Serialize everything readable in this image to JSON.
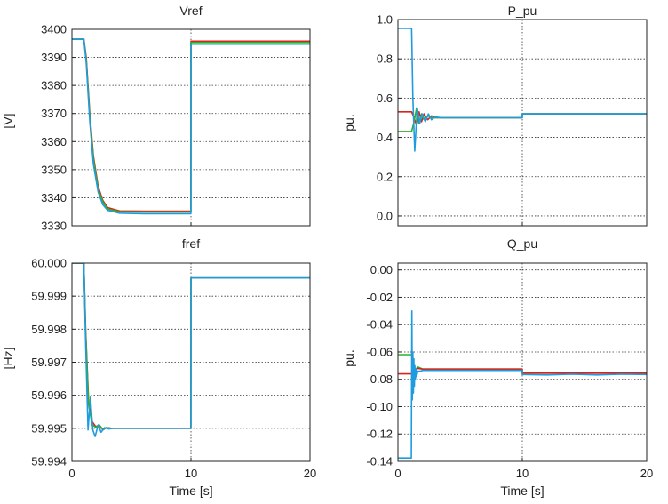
{
  "colors": {
    "red": "#d9241b",
    "green": "#2cb02c",
    "blue": "#1f9be0",
    "grid": "#333333"
  },
  "chart_data": [
    {
      "type": "line",
      "title": "Vref",
      "xlabel": "",
      "ylabel": "[V]",
      "xlim": [
        0,
        20
      ],
      "ylim": [
        3330,
        3400
      ],
      "xticks": [
        0,
        10,
        20
      ],
      "xtick_labels": [
        "",
        "",
        ""
      ],
      "yticks": [
        3330,
        3340,
        3350,
        3360,
        3370,
        3380,
        3390,
        3400
      ],
      "ytick_labels": [
        "3330",
        "3340",
        "3350",
        "3360",
        "3370",
        "3380",
        "3390",
        "3400"
      ],
      "series": [
        {
          "name": "red",
          "color": "#d9241b",
          "x": [
            0,
            1.0,
            1.2,
            1.5,
            1.8,
            2.2,
            2.6,
            3.0,
            4.0,
            6.0,
            9.99,
            10.0,
            20.0
          ],
          "y": [
            3396.5,
            3396.5,
            3390,
            3370,
            3355,
            3344,
            3339,
            3336.5,
            3335.3,
            3335.2,
            3335.2,
            3395.8,
            3395.8
          ]
        },
        {
          "name": "green",
          "color": "#2cb02c",
          "x": [
            0,
            1.0,
            1.2,
            1.5,
            1.8,
            2.2,
            2.6,
            3.0,
            4.0,
            6.0,
            9.99,
            10.0,
            20.0
          ],
          "y": [
            3396.5,
            3396.5,
            3389,
            3369,
            3354,
            3343,
            3338.5,
            3336,
            3335.0,
            3334.9,
            3334.9,
            3395.3,
            3395.3
          ]
        },
        {
          "name": "blue",
          "color": "#1f9be0",
          "x": [
            0,
            1.0,
            1.2,
            1.5,
            1.8,
            2.2,
            2.6,
            3.0,
            4.0,
            6.0,
            9.99,
            10.0,
            20.0
          ],
          "y": [
            3396.5,
            3396.5,
            3388,
            3367,
            3352,
            3342,
            3337.5,
            3335.5,
            3334.5,
            3334.3,
            3334.3,
            3394.7,
            3394.7
          ]
        }
      ]
    },
    {
      "type": "line",
      "title": "P_pu",
      "xlabel": "",
      "ylabel": "pu.",
      "xlim": [
        0,
        20
      ],
      "ylim": [
        -0.05,
        1.0
      ],
      "xticks": [
        0,
        10,
        20
      ],
      "xtick_labels": [
        "",
        "",
        ""
      ],
      "yticks": [
        0.0,
        0.2,
        0.4,
        0.6,
        0.8,
        1.0
      ],
      "ytick_labels": [
        "0.0",
        "0.2",
        "0.4",
        "0.6",
        "0.8",
        "1.0"
      ],
      "series": [
        {
          "name": "red",
          "color": "#d9241b",
          "x": [
            0,
            1.0,
            1.1,
            1.3,
            1.5,
            1.7,
            1.9,
            2.1,
            2.4,
            2.7,
            3.0,
            3.5,
            9.99,
            10.0,
            20.0
          ],
          "y": [
            0.53,
            0.53,
            0.53,
            0.5,
            0.46,
            0.53,
            0.48,
            0.52,
            0.49,
            0.51,
            0.5,
            0.5,
            0.5,
            0.52,
            0.52
          ]
        },
        {
          "name": "green",
          "color": "#2cb02c",
          "x": [
            0,
            1.0,
            1.1,
            1.3,
            1.5,
            1.7,
            1.9,
            2.1,
            2.4,
            2.7,
            3.0,
            3.5,
            9.99,
            10.0,
            20.0
          ],
          "y": [
            0.43,
            0.43,
            0.43,
            0.48,
            0.55,
            0.47,
            0.52,
            0.49,
            0.51,
            0.5,
            0.5,
            0.5,
            0.5,
            0.52,
            0.52
          ]
        },
        {
          "name": "blue",
          "color": "#1f9be0",
          "x": [
            0,
            1.0,
            1.1,
            1.2,
            1.35,
            1.55,
            1.75,
            1.95,
            2.2,
            2.45,
            2.7,
            3.0,
            3.5,
            9.99,
            10.0,
            20.0
          ],
          "y": [
            0.955,
            0.955,
            0.955,
            0.6,
            0.33,
            0.55,
            0.47,
            0.52,
            0.48,
            0.52,
            0.49,
            0.505,
            0.5,
            0.5,
            0.52,
            0.52
          ]
        }
      ]
    },
    {
      "type": "line",
      "title": "fref",
      "xlabel": "Time [s]",
      "ylabel": "[Hz]",
      "xlim": [
        0,
        20
      ],
      "ylim": [
        59.994,
        60.0
      ],
      "xticks": [
        0,
        10,
        20
      ],
      "xtick_labels": [
        "0",
        "10",
        "20"
      ],
      "yticks": [
        59.994,
        59.995,
        59.996,
        59.997,
        59.998,
        59.999,
        60.0
      ],
      "ytick_labels": [
        "59.994",
        "59.995",
        "59.996",
        "59.997",
        "59.998",
        "59.999",
        "60.000"
      ],
      "series": [
        {
          "name": "red",
          "color": "#d9241b",
          "x": [
            0,
            1.0,
            1.15,
            1.4,
            1.7,
            2.0,
            2.3,
            2.6,
            2.9,
            3.3,
            9.99,
            10.0,
            20.0
          ],
          "y": [
            60.0,
            60.0,
            59.998,
            59.9958,
            59.9952,
            59.99505,
            59.9951,
            59.99495,
            59.99502,
            59.995,
            59.995,
            59.99955,
            59.99955
          ]
        },
        {
          "name": "green",
          "color": "#2cb02c",
          "x": [
            0,
            1.0,
            1.15,
            1.4,
            1.7,
            2.0,
            2.3,
            2.6,
            2.9,
            3.3,
            9.99,
            10.0,
            20.0
          ],
          "y": [
            60.0,
            60.0,
            59.9979,
            59.9957,
            59.9951,
            59.99503,
            59.9951,
            59.99496,
            59.99502,
            59.995,
            59.995,
            59.99955,
            59.99955
          ]
        },
        {
          "name": "blue",
          "color": "#1f9be0",
          "x": [
            0,
            1.0,
            1.15,
            1.35,
            1.55,
            1.75,
            1.95,
            2.2,
            2.45,
            2.75,
            3.1,
            3.5,
            9.99,
            10.0,
            20.0
          ],
          "y": [
            60.0,
            60.0,
            59.9976,
            59.99495,
            59.99595,
            59.99495,
            59.99475,
            59.9951,
            59.99488,
            59.99502,
            59.99498,
            59.995,
            59.995,
            59.99955,
            59.99955
          ]
        }
      ]
    },
    {
      "type": "line",
      "title": "Q_pu",
      "xlabel": "Time [s]",
      "ylabel": "pu.",
      "xlim": [
        0,
        20
      ],
      "ylim": [
        -0.14,
        0.005
      ],
      "xticks": [
        0,
        10,
        20
      ],
      "xtick_labels": [
        "0",
        "10",
        "20"
      ],
      "yticks": [
        -0.14,
        -0.12,
        -0.1,
        -0.08,
        -0.06,
        -0.04,
        -0.02,
        0.0
      ],
      "ytick_labels": [
        "-0.14",
        "-0.12",
        "-0.10",
        "-0.08",
        "-0.06",
        "-0.04",
        "-0.02",
        "0.00"
      ],
      "series": [
        {
          "name": "green",
          "color": "#2cb02c",
          "x": [
            0,
            1.0,
            1.1,
            1.3,
            1.6,
            2.0,
            3.0,
            9.99,
            10.0,
            20.0
          ],
          "y": [
            -0.062,
            -0.062,
            -0.062,
            -0.075,
            -0.071,
            -0.0725,
            -0.0725,
            -0.0725,
            -0.0755,
            -0.0755
          ]
        },
        {
          "name": "red",
          "color": "#d9241b",
          "x": [
            0,
            1.0,
            1.1,
            1.3,
            1.6,
            2.0,
            3.0,
            9.99,
            10.0,
            20.0
          ],
          "y": [
            -0.076,
            -0.076,
            -0.076,
            -0.074,
            -0.072,
            -0.0725,
            -0.0725,
            -0.0725,
            -0.0755,
            -0.0755
          ]
        },
        {
          "name": "blue",
          "color": "#1f9be0",
          "x": [
            0,
            1.0,
            1.08,
            1.12,
            1.16,
            1.2,
            1.24,
            1.28,
            1.32,
            1.36,
            1.4,
            1.45,
            1.5,
            1.6,
            1.8,
            2.0,
            3.0,
            5.0,
            9.99,
            10.0,
            12.0,
            14.0,
            16.0,
            18.0,
            20.0
          ],
          "y": [
            -0.1375,
            -0.1375,
            -0.1375,
            -0.03,
            -0.095,
            -0.06,
            -0.09,
            -0.065,
            -0.085,
            -0.07,
            -0.08,
            -0.072,
            -0.078,
            -0.074,
            -0.074,
            -0.0735,
            -0.0735,
            -0.0735,
            -0.0735,
            -0.0765,
            -0.0768,
            -0.0762,
            -0.0768,
            -0.0762,
            -0.0765
          ]
        }
      ]
    }
  ]
}
